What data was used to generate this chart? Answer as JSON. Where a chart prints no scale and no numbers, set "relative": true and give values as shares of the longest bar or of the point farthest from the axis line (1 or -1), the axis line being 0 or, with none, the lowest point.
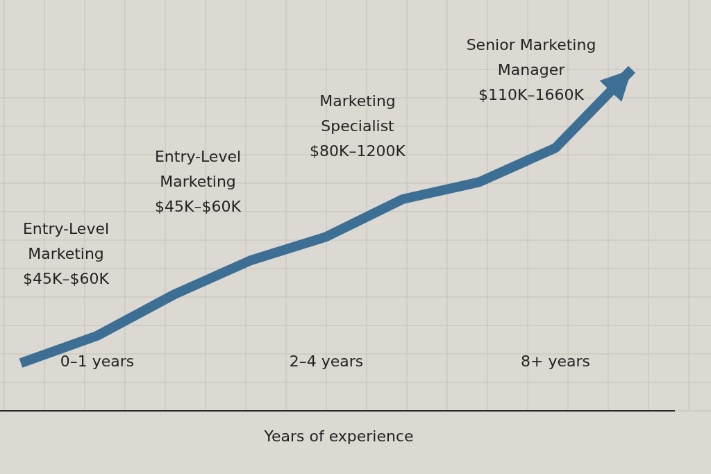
{
  "chart_data": {
    "type": "line",
    "relative": true,
    "xlabel": "Years of experience",
    "categories": [
      null,
      "0–1 years",
      null,
      null,
      "2–4 years",
      null,
      null,
      "8+ years",
      null
    ],
    "series": [
      {
        "color": "#3d6e94",
        "values": [
          0.14,
          0.22,
          0.34,
          0.44,
          0.51,
          0.62,
          0.67,
          0.77,
          1.0
        ]
      }
    ],
    "grid": true,
    "marker": "none",
    "line_style": "solid",
    "annotations": [
      "Entry-Level\nMarketing\n$45K–$60K",
      "Entry-Level\nMarketing\n$45K–$60K",
      "Marketing\nSpecialist\n$80K–1200K",
      "Senior Marketing\nManager\n$110K–1660K"
    ]
  }
}
